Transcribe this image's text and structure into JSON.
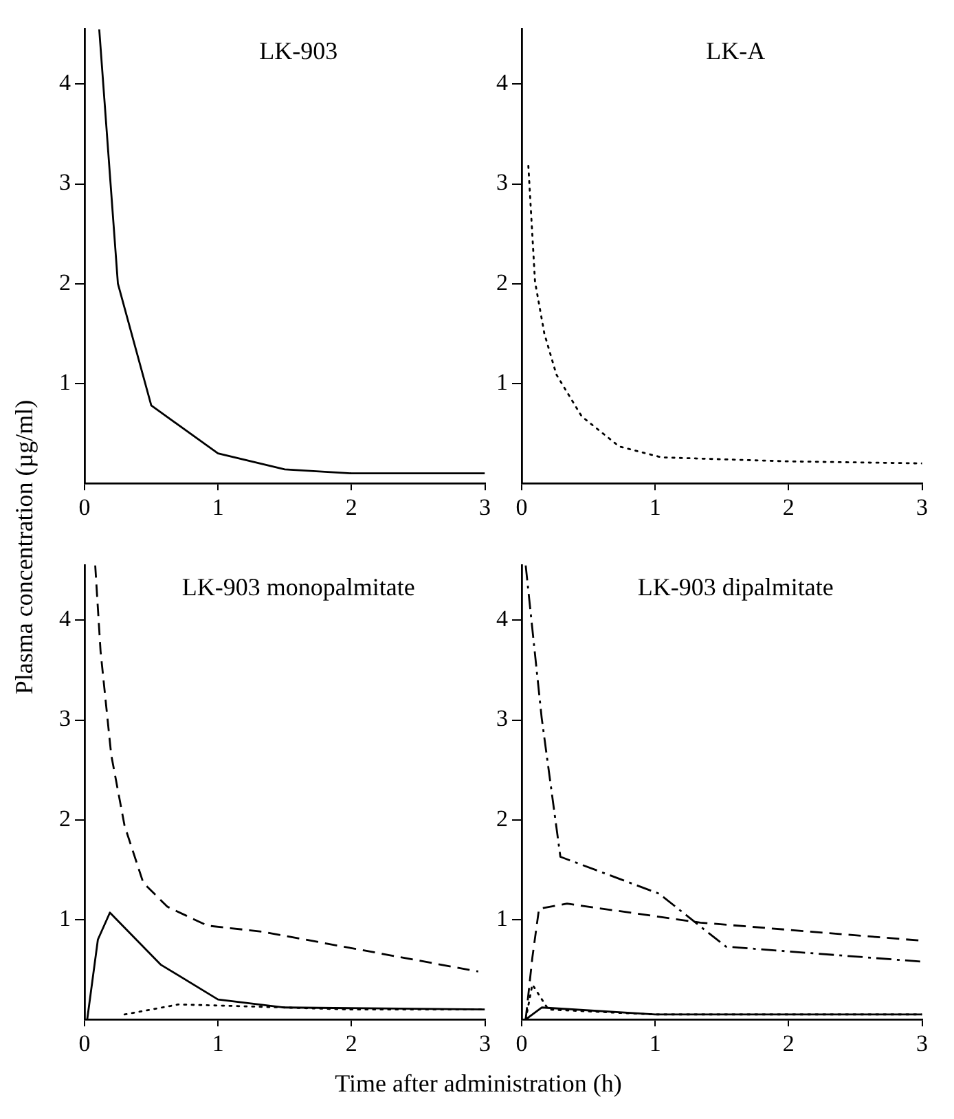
{
  "chart_data": [
    {
      "type": "line",
      "title": "LK-903",
      "ylabel": "Plasma concentration (µg/ml)",
      "xlim": [
        0,
        3
      ],
      "ylim": [
        0,
        4.55
      ],
      "xticks": [
        0,
        1,
        2,
        3
      ],
      "yticks": [
        1,
        2,
        3,
        4
      ],
      "grid": false,
      "legend": false,
      "marker": "none",
      "series": [
        {
          "color": "#000000",
          "line_style": "solid",
          "x": [
            0.11,
            0.25,
            0.5,
            1,
            1.5,
            2,
            3
          ],
          "values": [
            4.55,
            2.0,
            0.78,
            0.3,
            0.14,
            0.1,
            0.1
          ]
        }
      ]
    },
    {
      "type": "line",
      "title": "LK-A",
      "xlim": [
        0,
        3
      ],
      "ylim": [
        0,
        4.55
      ],
      "xticks": [
        0,
        1,
        2,
        3
      ],
      "yticks": [
        1,
        2,
        3,
        4
      ],
      "grid": false,
      "legend": false,
      "marker": "none",
      "series": [
        {
          "color": "#000000",
          "line_style": "dotted",
          "x": [
            0.05,
            0.1,
            0.17,
            0.26,
            0.45,
            0.73,
            1.05,
            2,
            3
          ],
          "values": [
            3.18,
            2.02,
            1.5,
            1.09,
            0.67,
            0.37,
            0.26,
            0.22,
            0.2
          ]
        }
      ]
    },
    {
      "type": "line",
      "title": "LK-903 monopalmitate",
      "xlabel": "Time after administration (h)",
      "xlim": [
        0,
        3
      ],
      "ylim": [
        0,
        4.55
      ],
      "xticks": [
        0,
        1,
        2,
        3
      ],
      "yticks": [
        1,
        2,
        3,
        4
      ],
      "grid": false,
      "legend": false,
      "marker": "none",
      "series": [
        {
          "color": "#000000",
          "line_style": "dashed",
          "x": [
            0.08,
            0.12,
            0.2,
            0.3,
            0.44,
            0.62,
            0.92,
            1.33,
            2.95
          ],
          "values": [
            4.55,
            3.69,
            2.65,
            1.94,
            1.37,
            1.13,
            0.94,
            0.88,
            0.48
          ]
        },
        {
          "color": "#000000",
          "line_style": "solid",
          "x": [
            0.02,
            0.1,
            0.19,
            0.57,
            1,
            1.5,
            3
          ],
          "values": [
            0,
            0.8,
            1.07,
            0.55,
            0.2,
            0.12,
            0.1
          ]
        },
        {
          "color": "#000000",
          "line_style": "dotted",
          "x": [
            0.3,
            0.7,
            1,
            2,
            3
          ],
          "values": [
            0.05,
            0.15,
            0.14,
            0.1,
            0.1
          ]
        }
      ]
    },
    {
      "type": "line",
      "title": "LK-903 dipalmitate",
      "xlim": [
        0,
        3
      ],
      "ylim": [
        0,
        4.55
      ],
      "xticks": [
        0,
        1,
        2,
        3
      ],
      "yticks": [
        1,
        2,
        3,
        4
      ],
      "grid": false,
      "legend": false,
      "marker": "none",
      "series": [
        {
          "color": "#000000",
          "line_style": "dashdot",
          "x": [
            0.03,
            0.15,
            0.29,
            1.03,
            1.53,
            2.99
          ],
          "values": [
            4.55,
            3.02,
            1.63,
            1.26,
            0.73,
            0.58
          ]
        },
        {
          "color": "#000000",
          "line_style": "dashed",
          "x": [
            0.03,
            0.08,
            0.13,
            0.34,
            1.34,
            2.99
          ],
          "values": [
            0,
            0.62,
            1.11,
            1.16,
            0.97,
            0.79
          ]
        },
        {
          "color": "#000000",
          "line_style": "dotted",
          "x": [
            0.03,
            0.08,
            0.2,
            1,
            3
          ],
          "values": [
            0,
            0.35,
            0.1,
            0.05,
            0.05
          ]
        },
        {
          "color": "#000000",
          "line_style": "solid",
          "x": [
            0.03,
            0.15,
            1,
            3
          ],
          "values": [
            0,
            0.12,
            0.05,
            0.05
          ]
        }
      ]
    }
  ]
}
